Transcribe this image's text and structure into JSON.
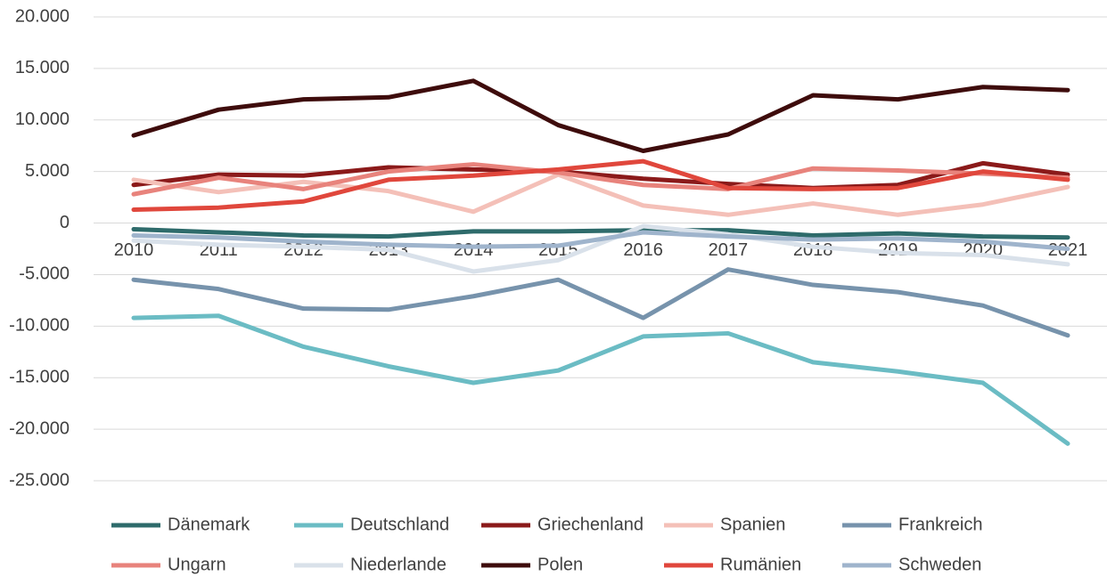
{
  "chart_data": {
    "type": "line",
    "categories": [
      "2010",
      "2011",
      "2012",
      "2013",
      "2014",
      "2015",
      "2016",
      "2017",
      "2018",
      "2019",
      "2020",
      "2021"
    ],
    "ylim": [
      -25000,
      20000
    ],
    "yticks": [
      {
        "value": 20000,
        "label": "20.000"
      },
      {
        "value": 15000,
        "label": "15.000"
      },
      {
        "value": 10000,
        "label": "10.000"
      },
      {
        "value": 5000,
        "label": "5.000"
      },
      0,
      {
        "value": -5000,
        "label": "-5.000"
      },
      {
        "value": -10000,
        "label": "-10.000"
      },
      {
        "value": -15000,
        "label": "-15.000"
      },
      {
        "value": -20000,
        "label": "-20.000"
      },
      {
        "value": -25000,
        "label": "-25.000"
      }
    ],
    "grid": true,
    "legend": "bottom",
    "series": [
      {
        "name": "Dänemark",
        "color": "#2e6b6b",
        "values": [
          -600,
          -900,
          -1200,
          -1300,
          -800,
          -800,
          -700,
          -700,
          -1200,
          -1000,
          -1300,
          -1400
        ]
      },
      {
        "name": "Deutschland",
        "color": "#6bbcc4",
        "values": [
          -9200,
          -9000,
          -12000,
          -13900,
          -15500,
          -14300,
          -11000,
          -10700,
          -13500,
          -14400,
          -15500,
          -21400
        ]
      },
      {
        "name": "Griechenland",
        "color": "#8b1a1a",
        "values": [
          3700,
          4700,
          4600,
          5400,
          5200,
          5000,
          4300,
          3800,
          3400,
          3700,
          5800,
          4700
        ]
      },
      {
        "name": "Spanien",
        "color": "#f4c0b8",
        "values": [
          4200,
          3000,
          4000,
          3100,
          1100,
          4700,
          1700,
          800,
          1900,
          800,
          1800,
          3500
        ]
      },
      {
        "name": "Frankreich",
        "color": "#7793ac",
        "values": [
          -5500,
          -6400,
          -8300,
          -8400,
          -7100,
          -5500,
          -9200,
          -4500,
          -6000,
          -6700,
          -8000,
          -10900
        ]
      },
      {
        "name": "Ungarn",
        "color": "#e8837c",
        "values": [
          2800,
          4400,
          3300,
          5000,
          5700,
          4900,
          3700,
          3300,
          5300,
          5100,
          4800,
          4400
        ]
      },
      {
        "name": "Niederlande",
        "color": "#d9e1ea",
        "values": [
          -1700,
          -2100,
          -2300,
          -2600,
          -4700,
          -3600,
          -300,
          -1100,
          -2300,
          -2900,
          -3100,
          -4000
        ]
      },
      {
        "name": "Polen",
        "color": "#3e0c0c",
        "values": [
          8500,
          11000,
          12000,
          12200,
          13800,
          9500,
          7000,
          8600,
          12400,
          12000,
          13200,
          12900
        ]
      },
      {
        "name": "Rumänien",
        "color": "#e0473c",
        "values": [
          1300,
          1500,
          2100,
          4200,
          4600,
          5200,
          6000,
          3400,
          3300,
          3400,
          5000,
          4200
        ]
      },
      {
        "name": "Schweden",
        "color": "#9fb4cc",
        "values": [
          -1200,
          -1400,
          -1800,
          -2100,
          -2300,
          -2200,
          -900,
          -1300,
          -1600,
          -1500,
          -1800,
          -2500
        ]
      }
    ]
  }
}
